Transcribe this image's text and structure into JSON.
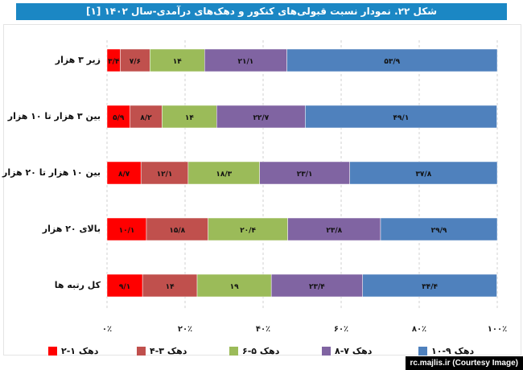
{
  "chart_data": {
    "type": "bar",
    "orientation": "horizontal",
    "stacked": true,
    "title": "شکل ۲۲. نمودار نسبت قبولی‌های کنکور و دهک‌های درآمدی-سال ۱۴۰۲ [۱]",
    "categories": [
      "زیر ۳ هزار",
      "بین ۳ هزار تا ۱۰ هزار",
      "بین ۱۰ هزار تا ۲۰ هزار",
      "بالای ۲۰ هزار",
      "کل رتبه ها"
    ],
    "series": [
      {
        "name": "دهک ۱-۲",
        "color": "#ff0000",
        "values": [
          3.4,
          5.9,
          8.7,
          10.1,
          9.1
        ],
        "labels": [
          "۳/۴",
          "۵/۹",
          "۸/۷",
          "۱۰/۱",
          "۹/۱"
        ]
      },
      {
        "name": "دهک ۳-۴",
        "color": "#c0504d",
        "values": [
          7.6,
          8.2,
          12.1,
          15.8,
          14
        ],
        "labels": [
          "۷/۶",
          "۸/۲",
          "۱۲/۱",
          "۱۵/۸",
          "۱۴"
        ]
      },
      {
        "name": "دهک ۵-۶",
        "color": "#9bbb59",
        "values": [
          14,
          14,
          18.3,
          20.4,
          19
        ],
        "labels": [
          "۱۴",
          "۱۴",
          "۱۸/۳",
          "۲۰/۴",
          "۱۹"
        ]
      },
      {
        "name": "دهک ۷-۸",
        "color": "#8064a2",
        "values": [
          21.1,
          22.7,
          23.1,
          23.8,
          23.4
        ],
        "labels": [
          "۲۱/۱",
          "۲۲/۷",
          "۲۳/۱",
          "۲۳/۸",
          "۲۳/۴"
        ]
      },
      {
        "name": "دهک ۹-۱۰",
        "color": "#4f81bd",
        "values": [
          53.9,
          49.1,
          37.8,
          29.9,
          34.4
        ],
        "labels": [
          "۵۳/۹",
          "۴۹/۱",
          "۳۷/۸",
          "۲۹/۹",
          "۳۴/۴"
        ]
      }
    ],
    "xlim": [
      0,
      100
    ],
    "xticks": [
      "۰٪",
      "۲۰٪",
      "۴۰٪",
      "۶۰٪",
      "۸۰٪",
      "۱۰۰٪"
    ],
    "grid": true,
    "legend": "bottom"
  },
  "credit": "rc.majlis.ir (Courtesy Image)"
}
